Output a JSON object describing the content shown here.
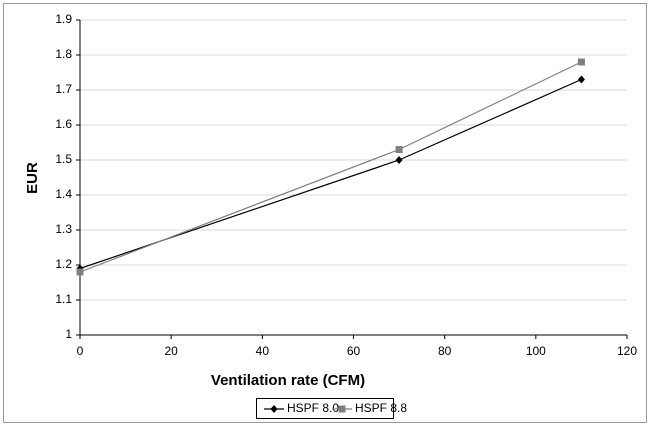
{
  "chart_data": {
    "type": "line",
    "x_label": "Ventilation rate (CFM)",
    "y_label": "EUR",
    "xlim": [
      0,
      120
    ],
    "xticks": [
      0,
      20,
      40,
      60,
      80,
      100,
      120
    ],
    "ylim": [
      1,
      1.9
    ],
    "yticks": [
      1,
      1.1,
      1.2,
      1.3,
      1.4,
      1.5,
      1.6,
      1.7,
      1.8,
      1.9
    ],
    "grid": true,
    "legend": "bottom",
    "series": [
      {
        "name": "HSPF 8.0",
        "color": "#000000",
        "marker": "diamond",
        "x": [
          0,
          70,
          110
        ],
        "values": [
          1.19,
          1.5,
          1.73
        ]
      },
      {
        "name": "HSPF 8.8",
        "color": "#808080",
        "marker": "square",
        "x": [
          0,
          70,
          110
        ],
        "values": [
          1.18,
          1.53,
          1.78
        ]
      }
    ]
  }
}
